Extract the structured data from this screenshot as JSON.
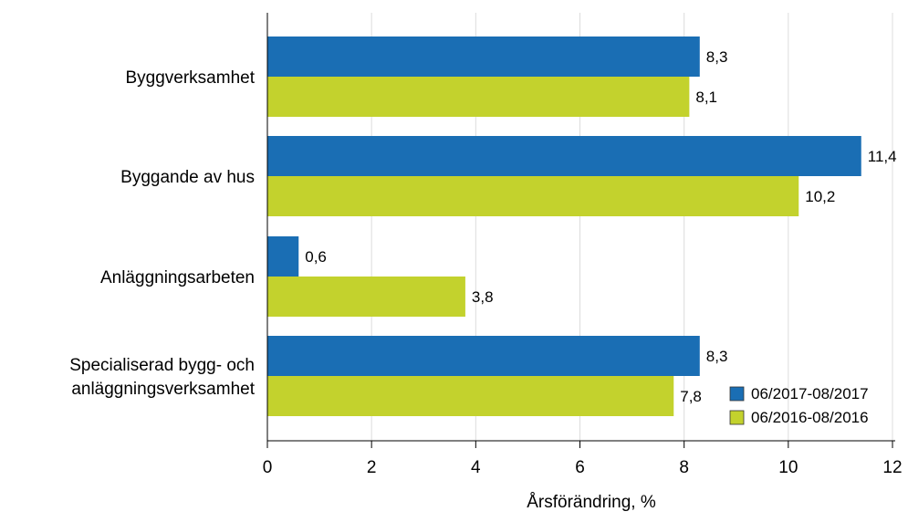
{
  "chart_data": {
    "type": "bar",
    "orientation": "horizontal",
    "title": "",
    "xlabel": "Årsförändring, %",
    "ylabel": "",
    "xlim": [
      0,
      12
    ],
    "xticks": [
      0,
      2,
      4,
      6,
      8,
      10,
      12
    ],
    "grid": true,
    "legend_position": "bottom-right",
    "categories": [
      "Byggverksamhet",
      "Byggande av hus",
      "Anläggningsarbeten",
      "Specialiserad bygg- och anläggningsverksamhet"
    ],
    "category_lines": [
      [
        "Byggverksamhet"
      ],
      [
        "Byggande av hus"
      ],
      [
        "Anläggningsarbeten"
      ],
      [
        "Specialiserad bygg- och",
        "anläggningsverksamhet"
      ]
    ],
    "series": [
      {
        "name": "06/2017-08/2017",
        "color": "#1a6eb4",
        "values": [
          8.3,
          11.4,
          0.6,
          8.3
        ],
        "labels": [
          "8,3",
          "11,4",
          "0,6",
          "8,3"
        ]
      },
      {
        "name": "06/2016-08/2016",
        "color": "#c3d22d",
        "values": [
          8.1,
          10.2,
          3.8,
          7.8
        ],
        "labels": [
          "8,1",
          "10,2",
          "3,8",
          "7,8"
        ]
      }
    ]
  }
}
